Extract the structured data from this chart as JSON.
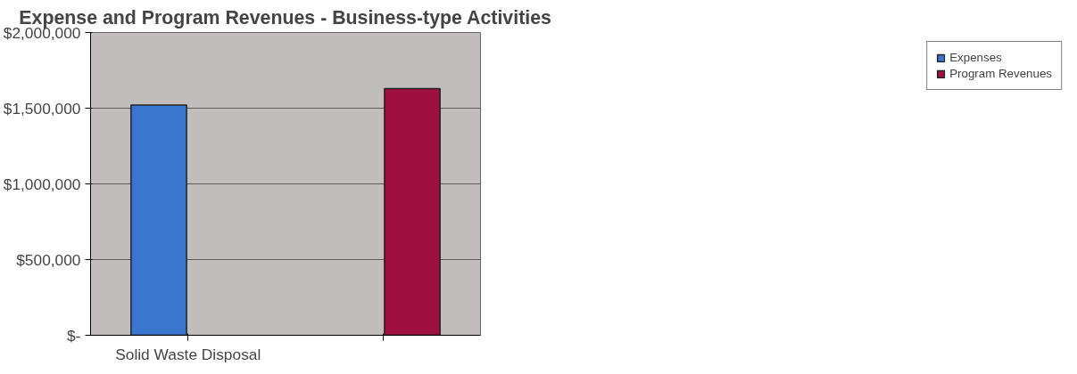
{
  "chart_data": {
    "type": "bar",
    "title": "Expense and Program Revenues - Business-type Activities",
    "categories": [
      "Solid Waste Disposal",
      null
    ],
    "series": [
      {
        "name": "Expenses",
        "color": "#3a76d0",
        "values": [
          1520000,
          null
        ]
      },
      {
        "name": "Program Revenues",
        "color": "#9e1040",
        "values": [
          null,
          1630000
        ]
      }
    ],
    "ylim": [
      0,
      2000000
    ],
    "yticks": [
      {
        "value": 0,
        "label": "$-"
      },
      {
        "value": 500000,
        "label": "$500,000"
      },
      {
        "value": 1000000,
        "label": "$1,000,000"
      },
      {
        "value": 1500000,
        "label": "$1,500,000"
      },
      {
        "value": 2000000,
        "label": "$2,000,000"
      }
    ],
    "grid": "y",
    "legend": "right"
  }
}
